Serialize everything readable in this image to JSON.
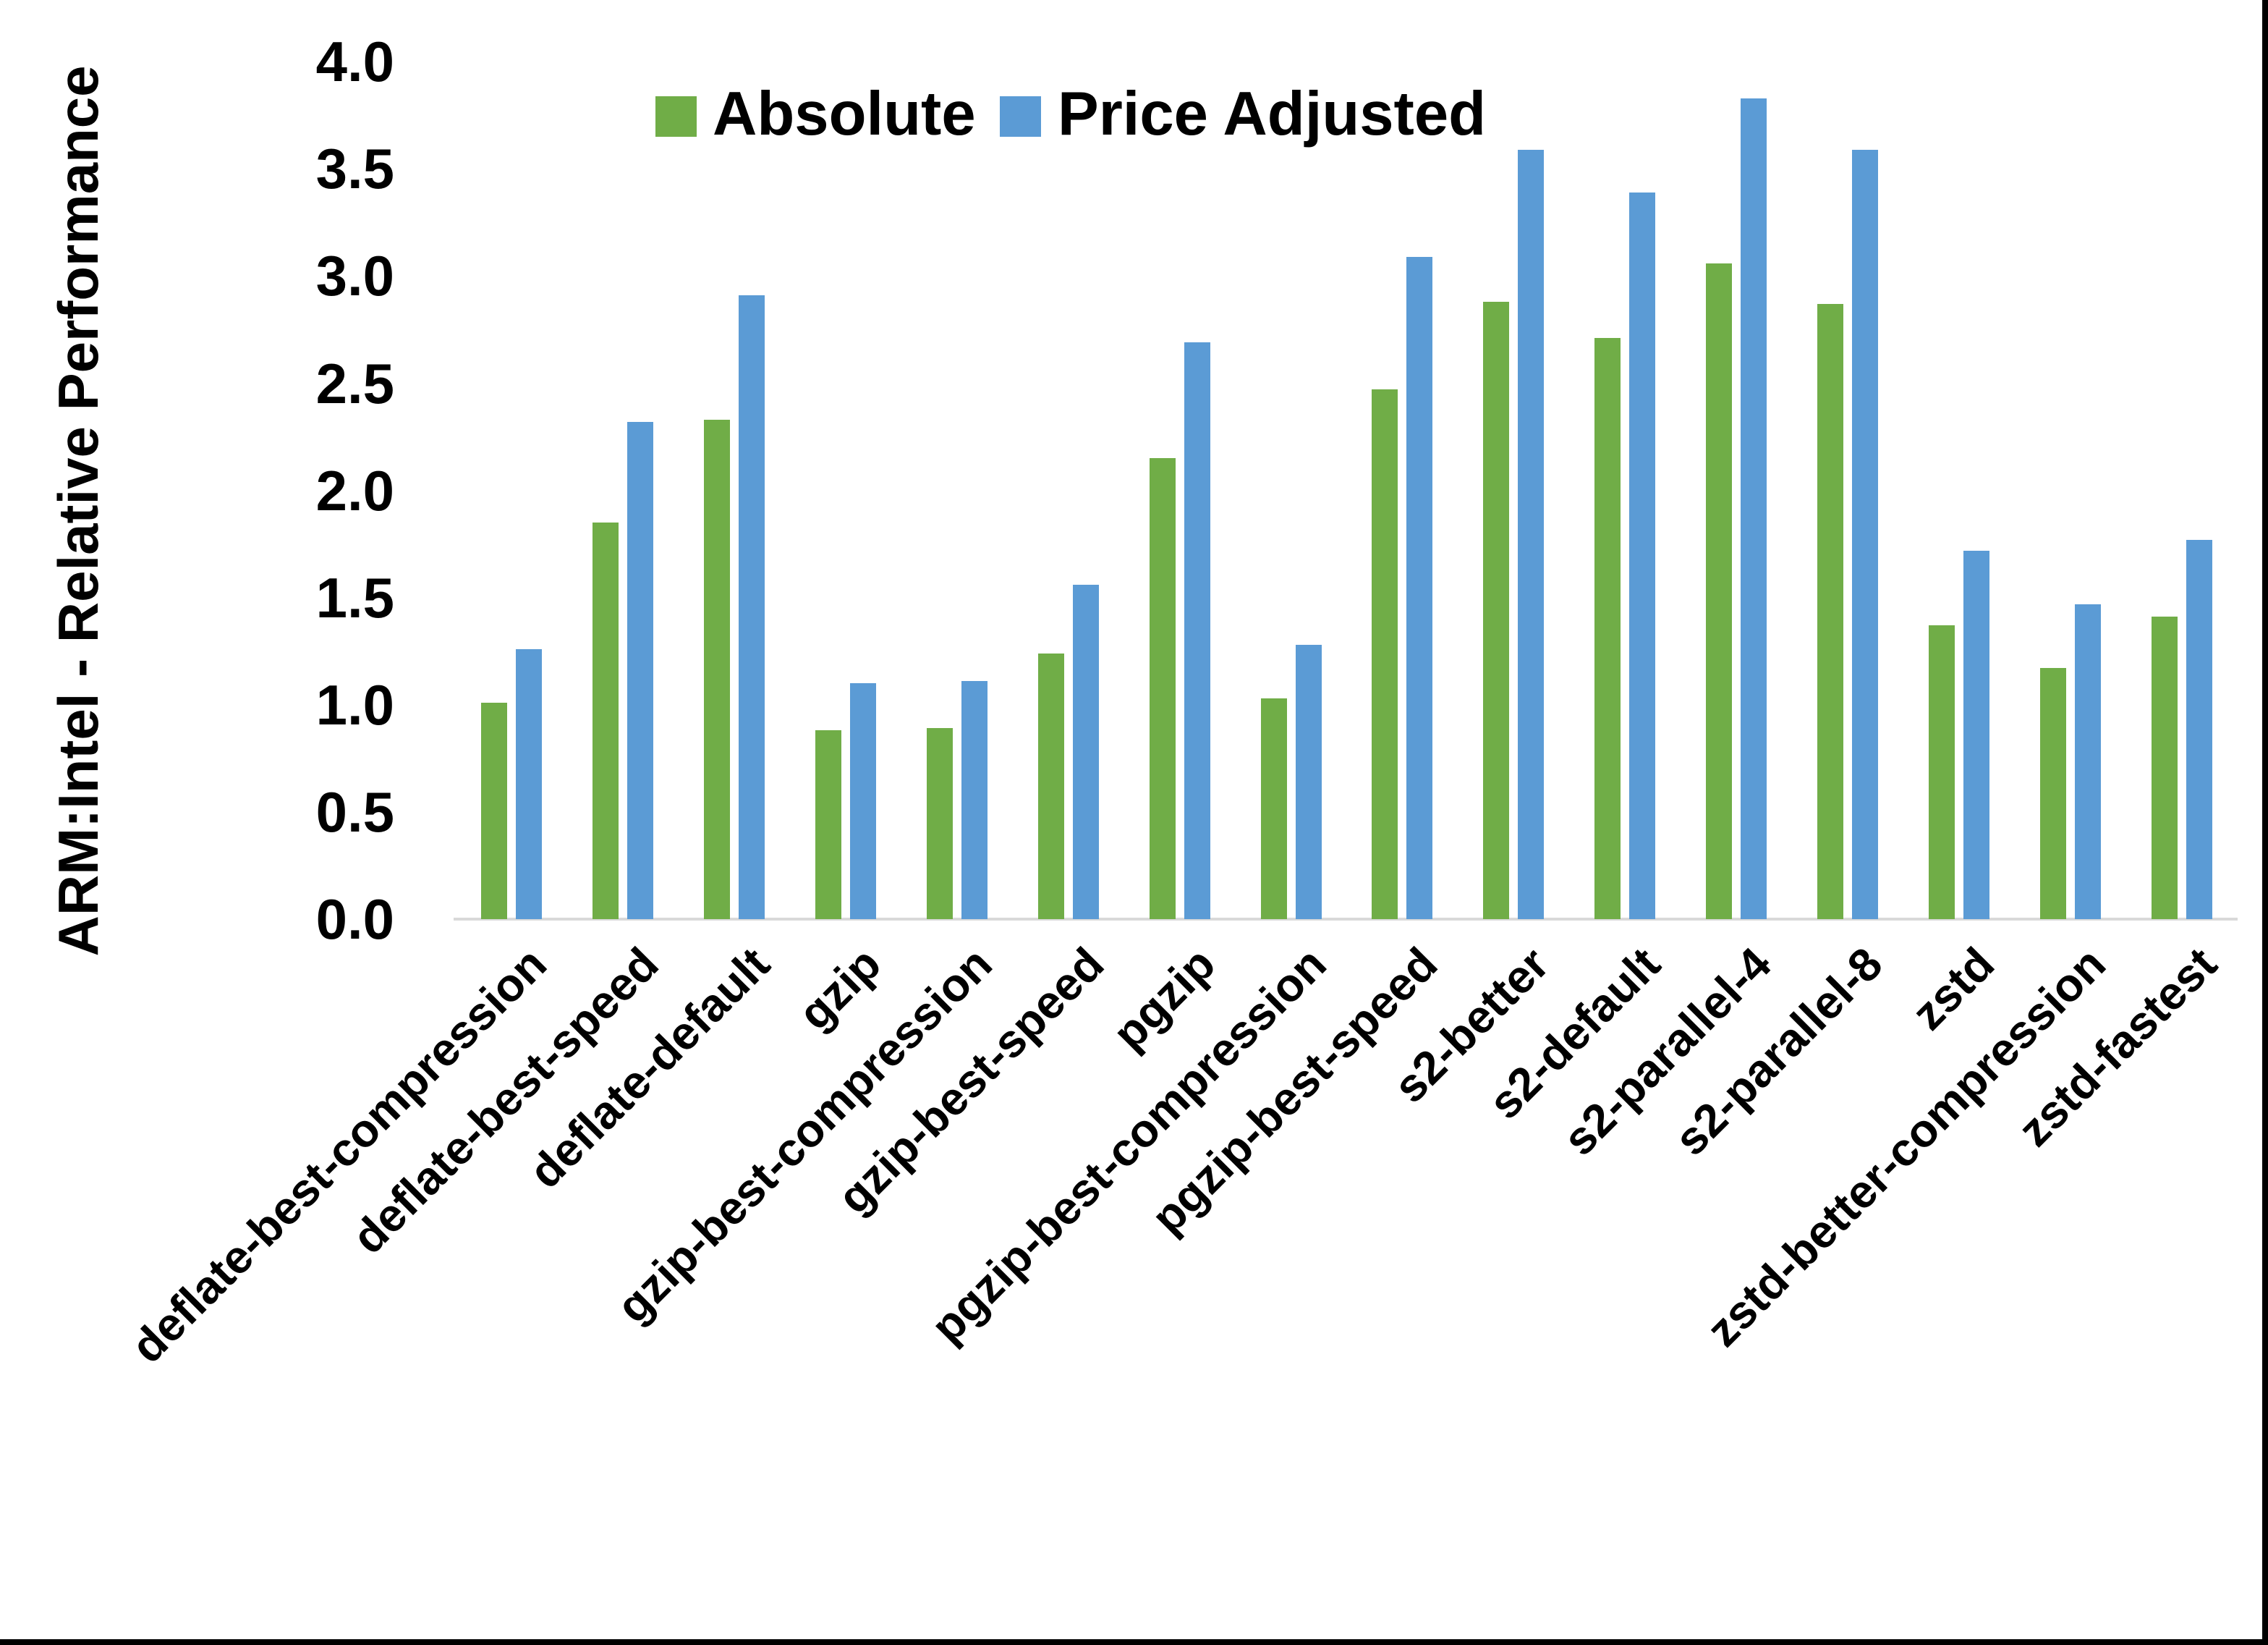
{
  "chart_data": {
    "type": "bar",
    "title": "",
    "ylabel": "ARM:Intel - Relative Performance",
    "xlabel": "",
    "ylim": [
      0.0,
      4.0
    ],
    "ytick_step": 0.5,
    "yticks": [
      "4.0",
      "3.5",
      "3.0",
      "2.5",
      "2.0",
      "1.5",
      "1.0",
      "0.5",
      "0.0"
    ],
    "grid": false,
    "legend_position": "top-center",
    "categories": [
      "deflate-best-compression",
      "deflate-best-speed",
      "deflate-default",
      "gzip",
      "gzip-best-compression",
      "gzip-best-speed",
      "pgzip",
      "pgzip-best-compression",
      "pgzip-best-speed",
      "s2-better",
      "s2-default",
      "s2-parallel-4",
      "s2-parallel-8",
      "zstd",
      "zstd-better-compression",
      "zstd-fastest"
    ],
    "series": [
      {
        "name": "Absolute",
        "color": "#70AD47",
        "values": [
          1.01,
          1.85,
          2.33,
          0.88,
          0.89,
          1.24,
          2.15,
          1.03,
          2.47,
          2.88,
          2.71,
          3.06,
          2.87,
          1.37,
          1.17,
          1.41
        ]
      },
      {
        "name": "Price Adjusted",
        "color": "#5B9BD5",
        "values": [
          1.26,
          2.32,
          2.91,
          1.1,
          1.11,
          1.56,
          2.69,
          1.28,
          3.09,
          3.59,
          3.39,
          3.83,
          3.59,
          1.72,
          1.47,
          1.77
        ]
      }
    ]
  },
  "colors": {
    "background": "#FFFFFF",
    "axis_line": "#D9D9D9",
    "text": "#000000",
    "screen_border": "#000000"
  }
}
